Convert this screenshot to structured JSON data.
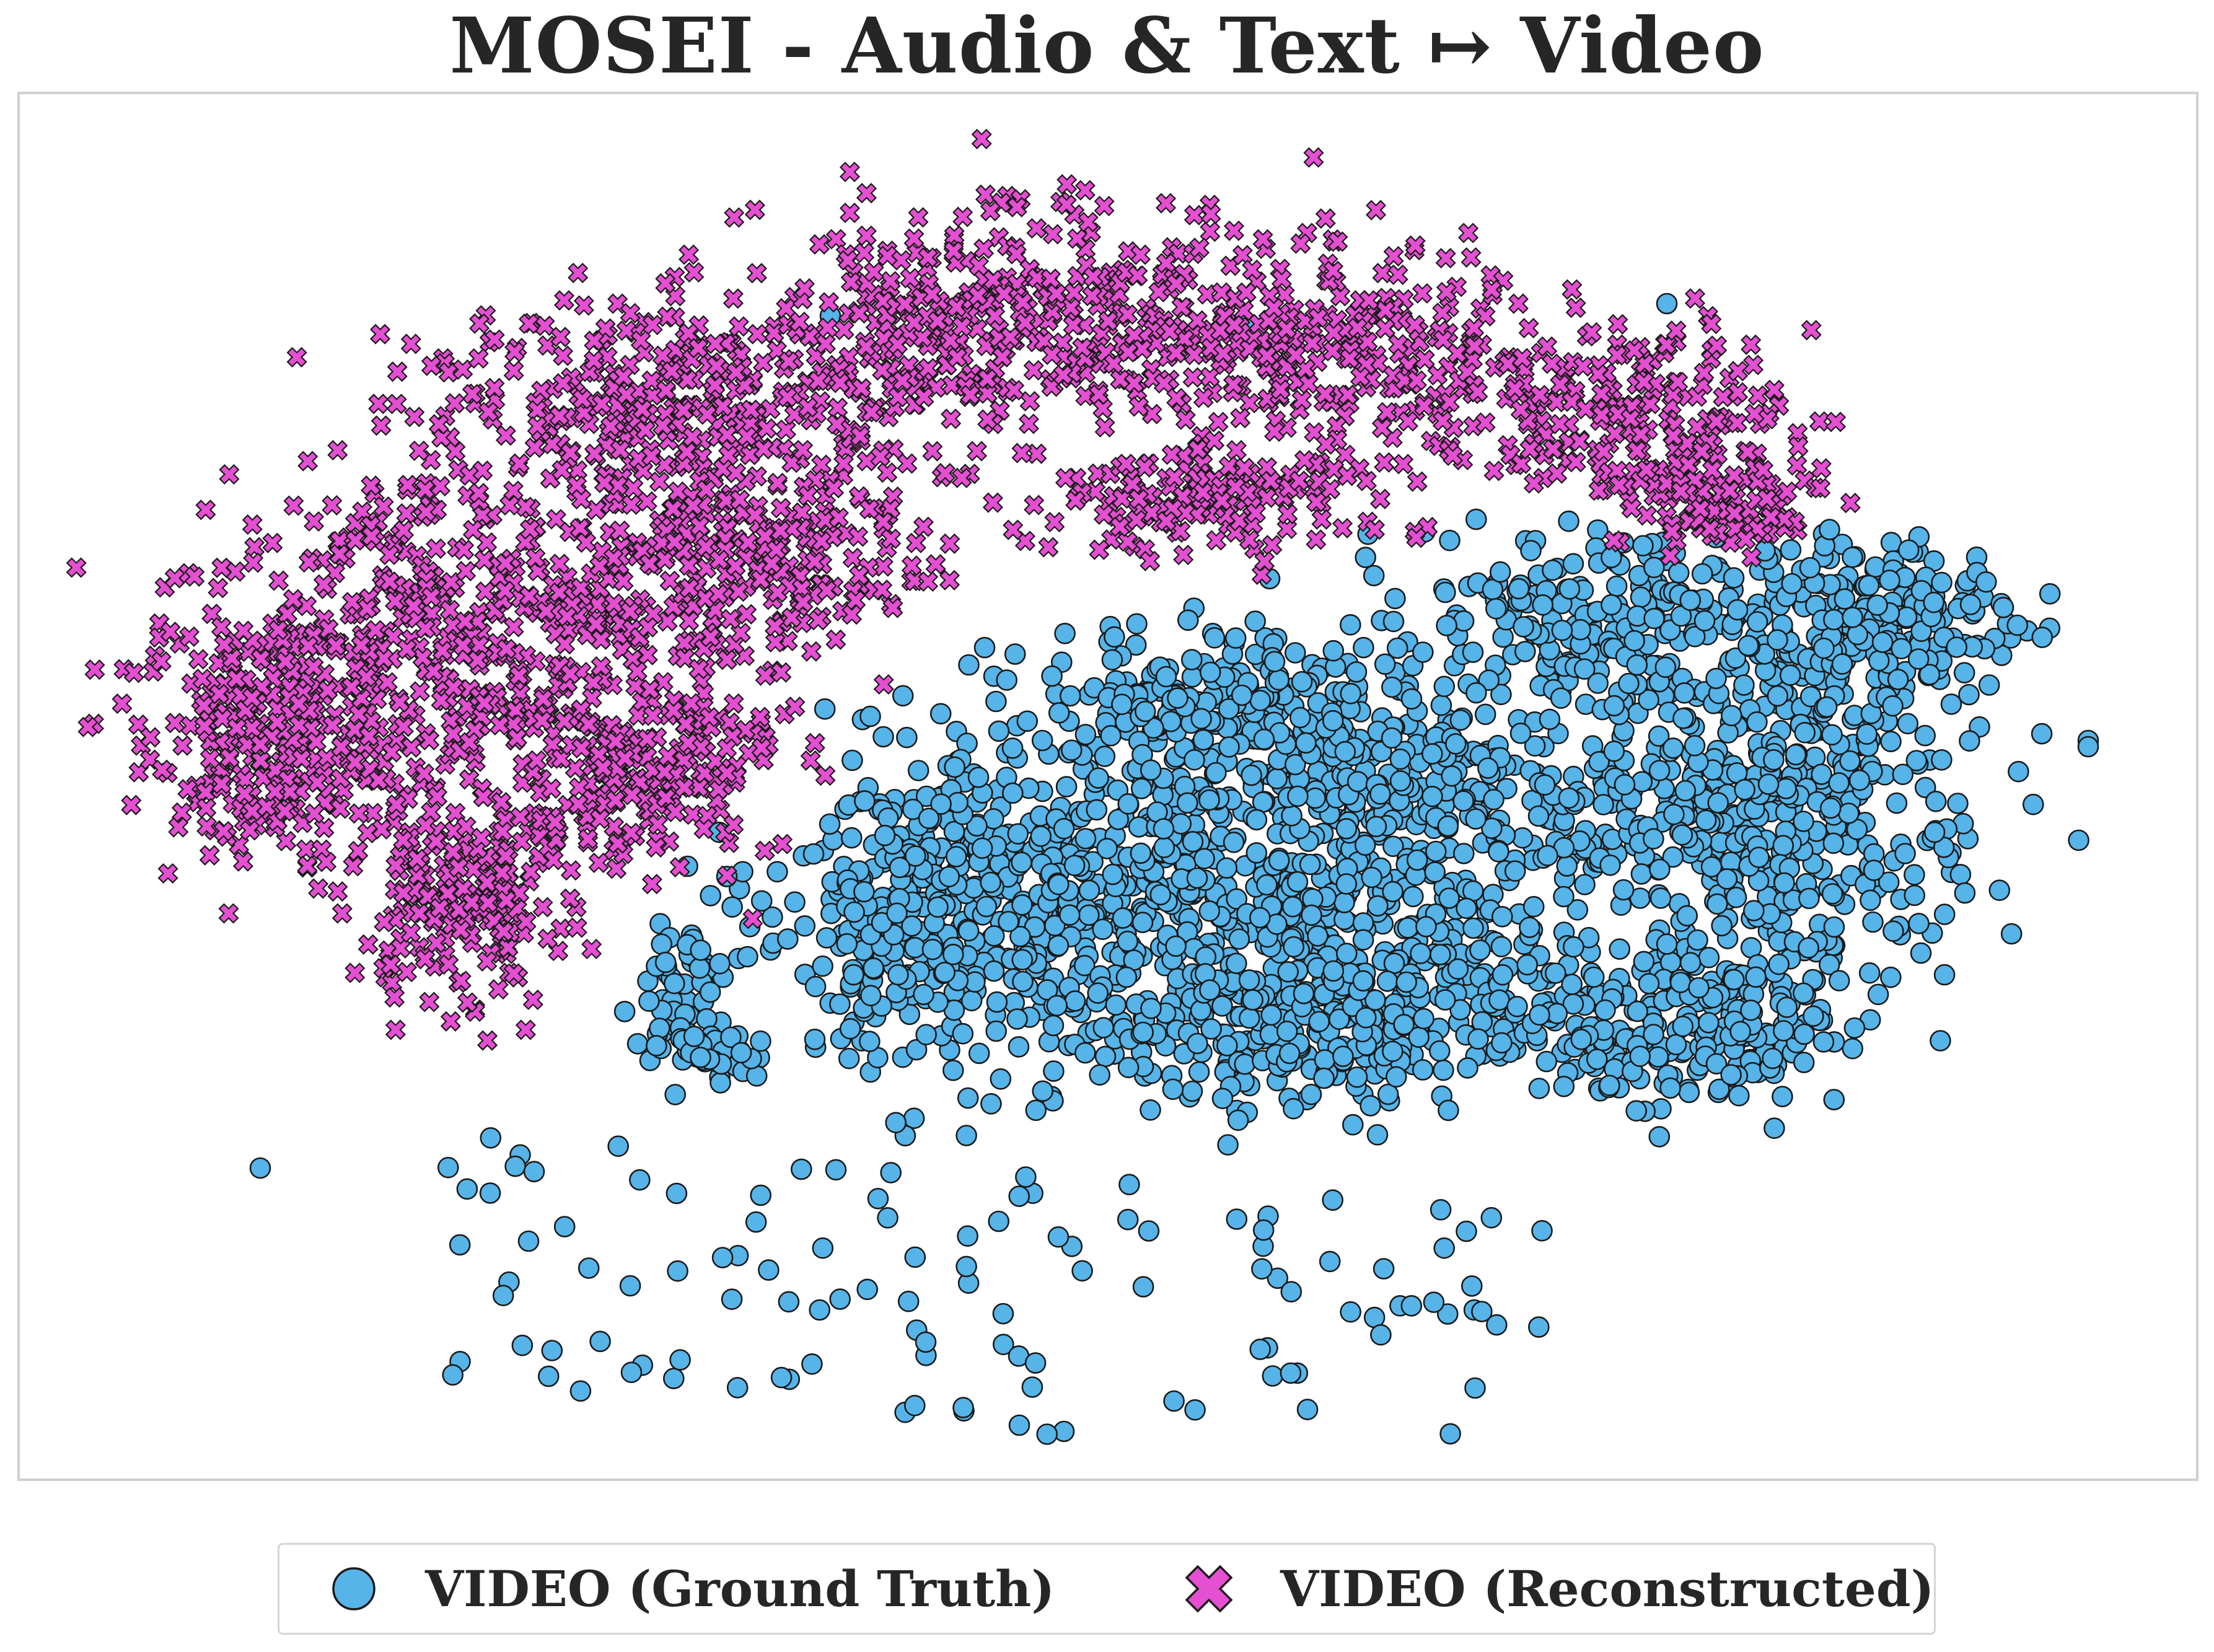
{
  "chart_data": {
    "type": "scatter",
    "title": "MOSEI - Audio & Text ↦ Video",
    "xlabel": "",
    "ylabel": "",
    "grid": false,
    "legend_placement": "bottom-center",
    "series": [
      {
        "name": "VIDEO (Ground Truth)",
        "marker": "circle",
        "color": "#56b4e9"
      },
      {
        "name": "VIDEO (Reconstructed)",
        "marker": "x",
        "color": "#e54fd2"
      }
    ]
  }
}
